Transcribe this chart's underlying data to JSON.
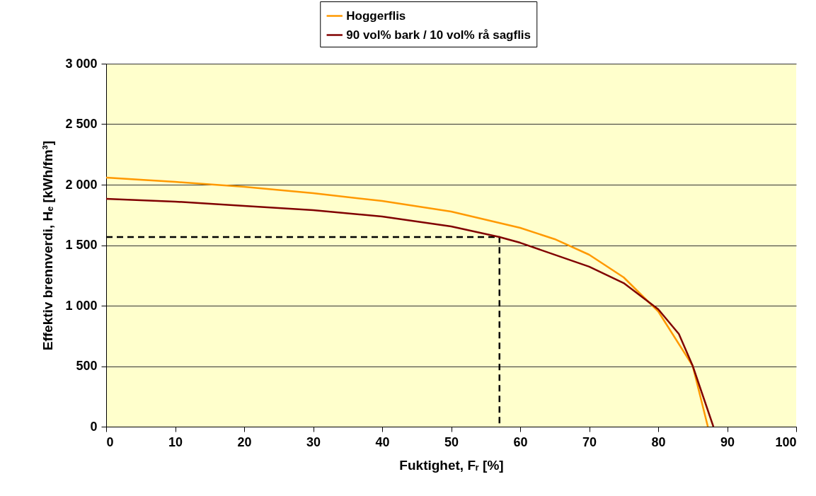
{
  "chart_data": {
    "type": "line",
    "xlabel": "Fuktighet, Fᵣ [%]",
    "ylabel": "Effektiv brennverdi, Hₑ [kWh/fm³]",
    "x": [
      0,
      10,
      20,
      30,
      40,
      50,
      60,
      65,
      70,
      75,
      80,
      85,
      87.2
    ],
    "series": [
      {
        "name": "Hoggerflis",
        "color": "#ff9900",
        "values": [
          2058,
          2023,
          1982,
          1930,
          1865,
          1778,
          1643,
          1550,
          1421,
          1234,
          953,
          503,
          0
        ]
      },
      {
        "name": "90 vol% bark / 10 vol% rå sagflis",
        "color": "#800000",
        "x": [
          0,
          10,
          20,
          30,
          40,
          50,
          57,
          60,
          70,
          75,
          80,
          83,
          85,
          88
        ],
        "values": [
          1883,
          1860,
          1825,
          1790,
          1737,
          1655,
          1567,
          1520,
          1322,
          1187,
          971,
          766,
          503,
          0
        ]
      },
      {
        "color": "#000000",
        "line_style": "dashed",
        "x": [
          0,
          57,
          57
        ],
        "values": [
          1567,
          1567,
          0
        ]
      }
    ],
    "xlim": [
      0,
      100
    ],
    "xticks": [
      0,
      10,
      20,
      30,
      40,
      50,
      60,
      70,
      80,
      90,
      100
    ],
    "ylim": [
      0,
      3000
    ],
    "yticks": [
      0,
      500,
      {
        "value": 1000,
        "label": "1 000"
      },
      {
        "value": 1500,
        "label": "1 500"
      },
      {
        "value": 2000,
        "label": "2 000"
      },
      {
        "value": 2500,
        "label": "2 500"
      },
      {
        "value": 3000,
        "label": "3 000"
      }
    ],
    "grid": "y",
    "legend": "top",
    "marker": "none"
  }
}
